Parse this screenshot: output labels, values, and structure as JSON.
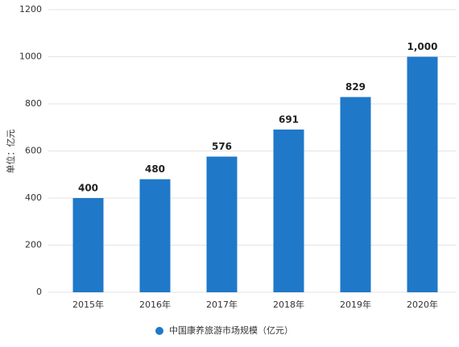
{
  "chart_data": {
    "type": "bar",
    "y_label": "单位：亿元",
    "categories": [
      "2015年",
      "2016年",
      "2017年",
      "2018年",
      "2019年",
      "2020年"
    ],
    "series": [
      {
        "name": "中国康养旅游市场规模（亿元）",
        "color": "#1f78c8",
        "values": [
          400,
          480,
          576,
          691,
          829,
          1000
        ],
        "value_labels": [
          "400",
          "480",
          "576",
          "691",
          "829",
          "1,000"
        ]
      }
    ],
    "ylim": [
      0,
      1200
    ],
    "yticks": [
      0,
      200,
      400,
      600,
      800,
      1000,
      1200
    ],
    "grid": true,
    "legend": "bottom"
  }
}
